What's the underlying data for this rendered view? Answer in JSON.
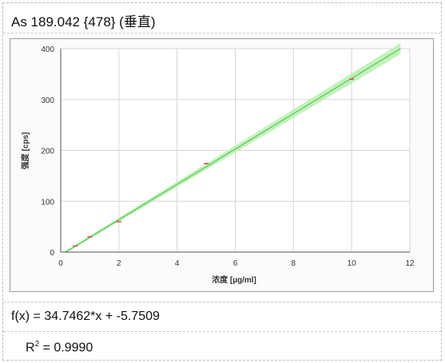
{
  "header": {
    "title": "As 189.042 {478} (垂直)"
  },
  "chart_data": {
    "type": "scatter",
    "xlabel": "浓度 [µg/ml]",
    "ylabel": "强度 [cps]",
    "xlim": [
      0,
      12
    ],
    "ylim": [
      0,
      400
    ],
    "xticks": [
      "0",
      "2",
      "4",
      "6",
      "8",
      "10",
      "12"
    ],
    "yticks": [
      "0",
      "100",
      "200",
      "300",
      "400"
    ],
    "grid": true,
    "points": [
      {
        "x": 0.5,
        "y": 12
      },
      {
        "x": 1,
        "y": 30
      },
      {
        "x": 2,
        "y": 60
      },
      {
        "x": 5,
        "y": 174
      },
      {
        "x": 10,
        "y": 340
      }
    ],
    "fit": {
      "slope": 34.7462,
      "intercept": -5.7509
    },
    "colors": {
      "fit_line": "#56c456",
      "confidence_band": "#b8f0b0",
      "points": "#d9534f",
      "grid": "#d6d6d6"
    }
  },
  "equation": {
    "text": "f(x) = 34.7462*x + -5.7509"
  },
  "r2": {
    "label": "R",
    "sup": "2",
    "value": " = 0.9990"
  }
}
